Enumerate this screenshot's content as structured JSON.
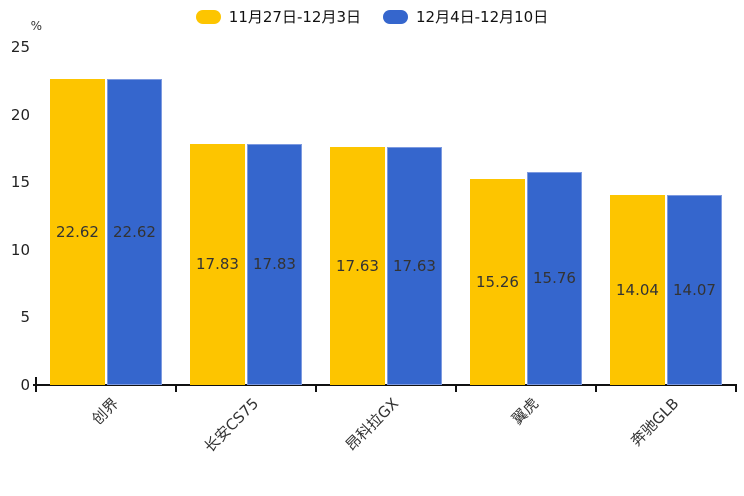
{
  "chart_data": {
    "type": "bar",
    "categories": [
      "创界",
      "长安CS75",
      "昂科拉GX",
      "翼虎",
      "奔驰GLB"
    ],
    "series": [
      {
        "name": "11月27日-12月3日",
        "color": "#FDC500",
        "values": [
          22.62,
          17.83,
          17.63,
          15.26,
          14.04
        ]
      },
      {
        "name": "12月4日-12月10日",
        "color": "#3566CD",
        "values": [
          22.62,
          17.83,
          17.63,
          15.76,
          14.07
        ]
      }
    ],
    "value_labels": [
      "22.62",
      "17.83",
      "17.63",
      "15.26",
      "14.04",
      "22.62",
      "17.83",
      "17.63",
      "15.76",
      "14.07"
    ],
    "title": "",
    "xlabel": "",
    "ylabel": "%",
    "ylim": [
      0,
      25
    ],
    "yticks": [
      "0",
      "5",
      "10",
      "15",
      "20",
      "25"
    ],
    "grid": false,
    "legend_position": "top",
    "value_label_position": "centered-inside-bar"
  }
}
